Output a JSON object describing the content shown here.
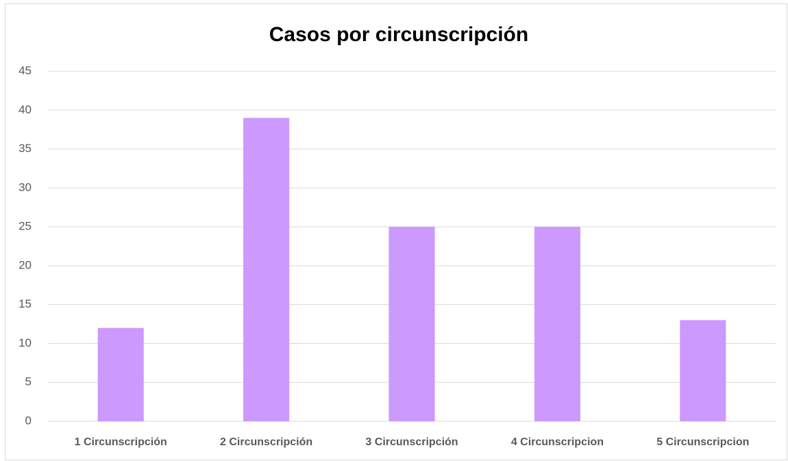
{
  "chart_data": {
    "type": "bar",
    "title": "Casos por circunscripción",
    "categories": [
      "1 Circunscripción",
      "2 Circunscripción",
      "3 Circunscripción",
      "4 Circunscripcion",
      "5 Circunscripcion"
    ],
    "values": [
      12,
      39,
      25,
      25,
      13
    ],
    "color": "#cc99ff",
    "ylim": [
      0,
      45
    ],
    "yticks": [
      0,
      5,
      10,
      15,
      20,
      25,
      30,
      35,
      40,
      45
    ],
    "grid": true
  }
}
